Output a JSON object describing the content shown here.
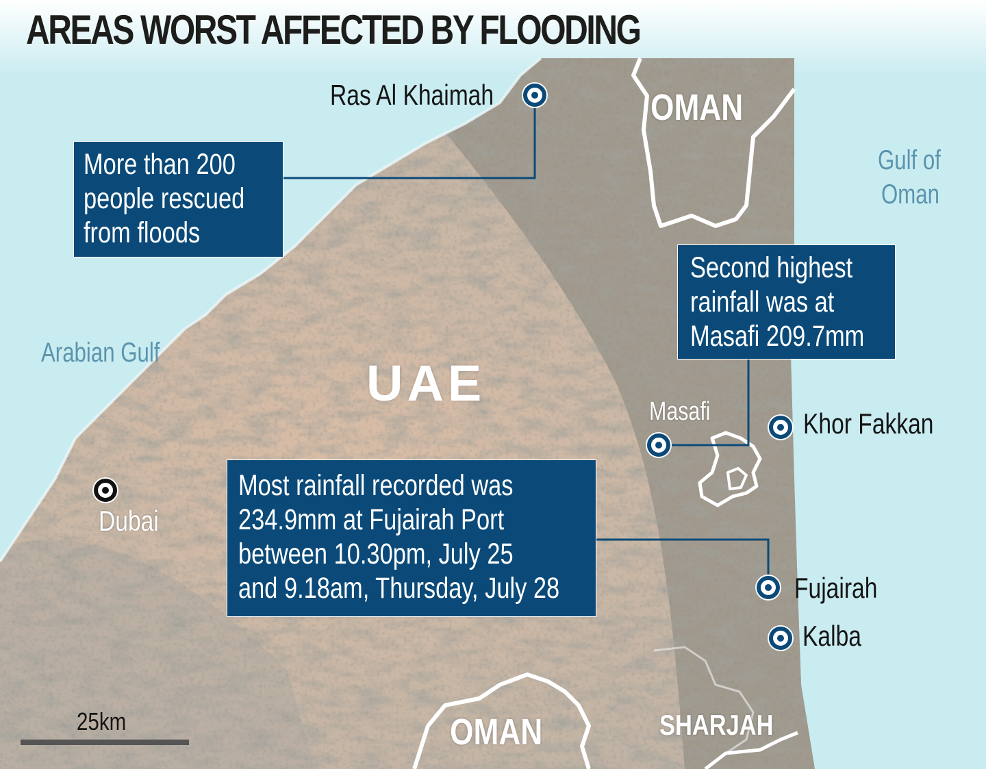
{
  "title": "AREAS WORST AFFECTED BY FLOODING",
  "water_bodies": {
    "arabian_gulf": "Arabian Gulf",
    "gulf_of_oman_line1": "Gulf of",
    "gulf_of_oman_line2": "Oman"
  },
  "regions": {
    "uae": "UAE",
    "oman_north": "OMAN",
    "oman_south": "OMAN",
    "sharjah": "SHARJAH"
  },
  "places": {
    "ras_al_khaimah": "Ras Al Khaimah",
    "dubai": "Dubai",
    "masafi": "Masafi",
    "khor_fakkan": "Khor Fakkan",
    "fujairah": "Fujairah",
    "kalba": "Kalba"
  },
  "callouts": {
    "rescue": [
      "More than 200",
      "people rescued",
      "from floods"
    ],
    "masafi": [
      "Second highest",
      "rainfall was at",
      "Masafi 209.7mm"
    ],
    "fujairah_port": [
      "Most rainfall recorded was",
      "234.9mm at Fujairah Port",
      "between 10.30pm, July 25",
      "and 9.18am, Thursday, July 28"
    ]
  },
  "scale_bar": {
    "label": "25km"
  },
  "colors": {
    "sea": "#c9ecf1",
    "callout_fill": "#0b4a78",
    "water_label": "#5b94ad",
    "border": "#ffffff"
  }
}
